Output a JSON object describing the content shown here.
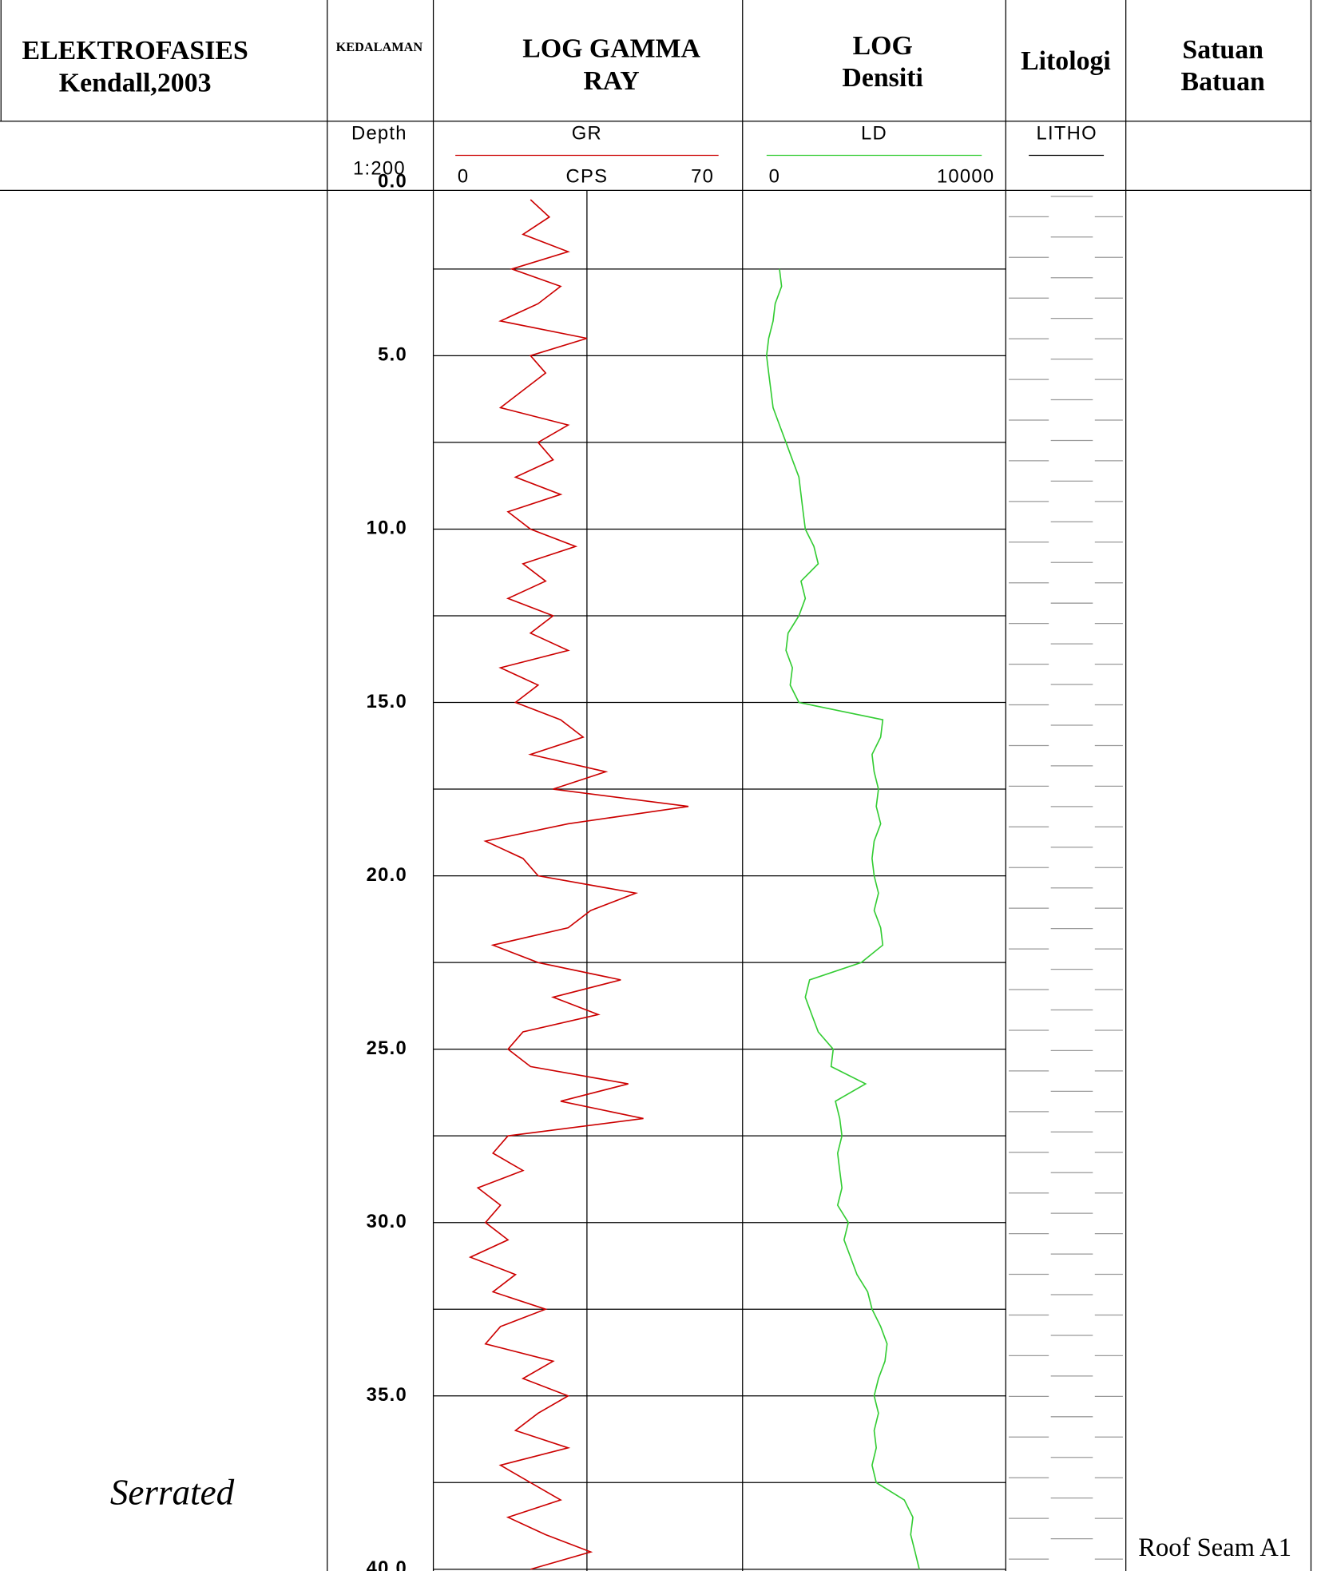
{
  "header": {
    "elektrofasies": [
      "ELEKTROFASIES",
      "Kendall,2003"
    ],
    "kedalaman": "KEDALAMAN",
    "gamma": [
      "LOG GAMMA",
      "RAY"
    ],
    "densiti": [
      "LOG",
      "Densiti"
    ],
    "litologi": "Litologi",
    "satuan": [
      "Satuan",
      "Batuan"
    ]
  },
  "chart_data": {
    "type": "well-log",
    "depth_label": "Depth",
    "scale": "1:200",
    "depth_lim": [
      0,
      40.05
    ],
    "depth_ticks": [
      {
        "value": 0,
        "label": "0.0"
      },
      {
        "value": 5,
        "label": "5.0"
      },
      {
        "value": 10,
        "label": "10.0"
      },
      {
        "value": 15,
        "label": "15.0"
      },
      {
        "value": 20,
        "label": "20.0"
      },
      {
        "value": 25,
        "label": "25.0"
      },
      {
        "value": 30,
        "label": "30.0"
      },
      {
        "value": 35,
        "label": "35.0"
      },
      {
        "value": 40,
        "label": "40.0"
      }
    ],
    "minor_ticks": [
      2.5,
      7.5,
      12.5,
      17.5,
      22.5,
      27.5,
      32.5,
      37.5
    ],
    "litho": "LITHO",
    "series": [
      {
        "name": "GR",
        "unit": "CPS",
        "color": "#cc0000",
        "xlim": [
          0,
          70
        ],
        "xgrid": [
          35
        ],
        "depth": [
          0.5,
          1,
          1.5,
          2,
          2.5,
          3,
          3.5,
          4,
          4.5,
          5,
          5.5,
          6,
          6.5,
          7,
          7.5,
          8,
          8.5,
          9,
          9.5,
          10,
          10.5,
          11,
          11.5,
          12,
          12.5,
          13,
          13.5,
          14,
          14.5,
          15,
          15.5,
          16,
          16.5,
          17,
          17.5,
          18,
          18.5,
          19,
          19.5,
          20,
          20.5,
          21,
          21.5,
          22,
          22.5,
          23,
          23.5,
          24,
          24.5,
          25,
          25.5,
          26,
          26.5,
          27,
          27.5,
          28,
          28.5,
          29,
          29.5,
          30,
          30.5,
          31,
          31.5,
          32,
          32.5,
          33,
          33.5,
          34,
          34.5,
          35,
          35.5,
          36,
          36.5,
          37,
          37.5,
          38,
          38.5,
          39,
          39.5,
          40
        ],
        "values": [
          20,
          25,
          18,
          30,
          15,
          28,
          22,
          12,
          35,
          20,
          24,
          18,
          12,
          30,
          22,
          26,
          16,
          28,
          14,
          20,
          32,
          18,
          24,
          14,
          26,
          20,
          30,
          12,
          22,
          16,
          28,
          34,
          20,
          40,
          26,
          62,
          30,
          8,
          18,
          22,
          48,
          36,
          30,
          10,
          22,
          44,
          26,
          38,
          18,
          14,
          20,
          46,
          28,
          50,
          14,
          10,
          18,
          6,
          12,
          8,
          14,
          4,
          16,
          10,
          24,
          12,
          8,
          26,
          18,
          30,
          22,
          16,
          30,
          12,
          20,
          28,
          14,
          24,
          36,
          20
        ]
      },
      {
        "name": "LD",
        "color": "#33cc33",
        "xlim": [
          0,
          10000
        ],
        "depth": [
          2.5,
          3,
          3.5,
          4,
          4.5,
          5,
          5.5,
          6,
          6.5,
          7,
          7.5,
          8,
          8.5,
          9,
          9.5,
          10,
          10.5,
          11,
          11.5,
          12,
          12.5,
          13,
          13.5,
          14,
          14.5,
          15,
          15.5,
          16,
          16.5,
          17,
          17.5,
          18,
          18.5,
          19,
          19.5,
          20,
          20.5,
          21,
          21.5,
          22,
          22.5,
          23,
          23.5,
          24,
          24.5,
          25,
          25.5,
          26,
          26.5,
          27,
          27.5,
          28,
          28.5,
          29,
          29.5,
          30,
          30.5,
          31,
          31.5,
          32,
          32.5,
          33,
          33.5,
          34,
          34.5,
          35,
          35.5,
          36,
          36.5,
          37,
          37.5,
          38,
          38.5,
          39,
          39.5,
          40
        ],
        "values": [
          600,
          700,
          400,
          300,
          100,
          0,
          100,
          200,
          300,
          600,
          900,
          1200,
          1500,
          1600,
          1700,
          1800,
          2200,
          2400,
          1600,
          1800,
          1500,
          1000,
          900,
          1200,
          1100,
          1500,
          5400,
          5300,
          4900,
          5000,
          5200,
          5100,
          5300,
          5000,
          4900,
          5000,
          5200,
          5000,
          5300,
          5400,
          4400,
          2000,
          1800,
          2100,
          2400,
          3100,
          3000,
          4600,
          3200,
          3400,
          3500,
          3300,
          3400,
          3500,
          3300,
          3800,
          3600,
          3900,
          4200,
          4700,
          4900,
          5300,
          5600,
          5500,
          5200,
          5000,
          5200,
          5000,
          5100,
          4900,
          5100,
          6400,
          6800,
          6700,
          6900,
          7100
        ]
      }
    ]
  },
  "annotations": {
    "pattern": "Serrated",
    "seam": "Roof Seam A1"
  }
}
